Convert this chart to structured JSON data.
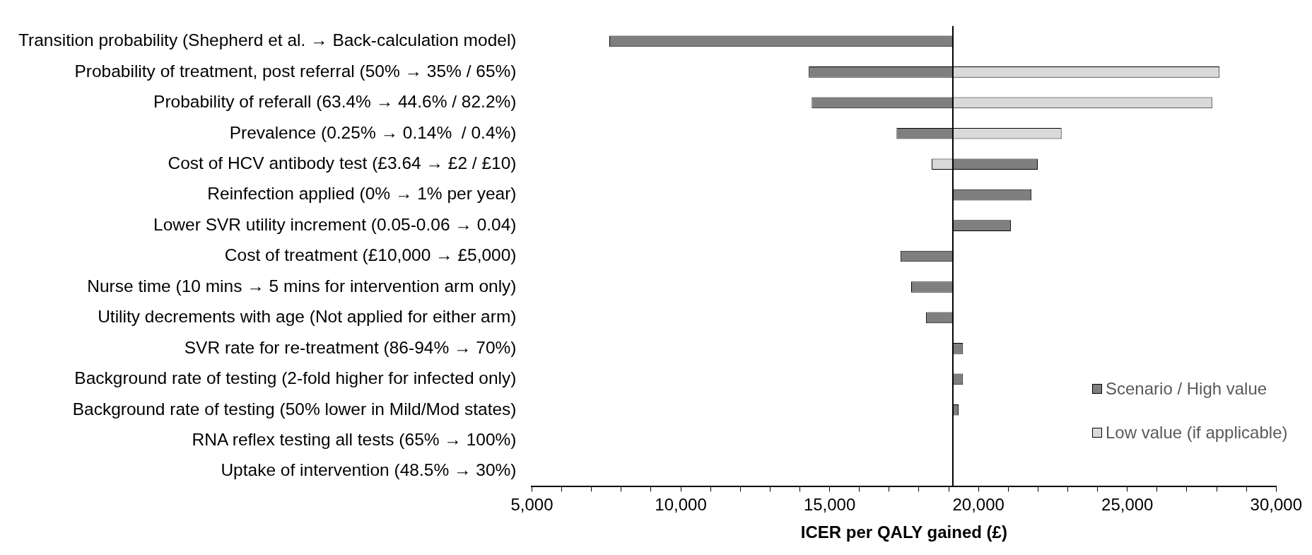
{
  "chart_data": {
    "type": "bar",
    "orientation": "horizontal",
    "xlabel": "ICER per QALY gained (£)",
    "categories": [
      "Transition probability (Shepherd et al. → Back-calculation model)",
      "Probability of treatment, post referral (50% → 35% / 65%)",
      "Probability of referall (63.4% → 44.6% / 82.2%)",
      "Prevalence (0.25% → 0.14%  / 0.4%)",
      "Cost of HCV antibody test (£3.64 → £2 / £10)",
      "Reinfection applied (0% → 1% per year)",
      "Lower SVR utility increment (0.05-0.06 → 0.04)",
      "Cost of treatment (£10,000 → £5,000)",
      "Nurse time (10 mins → 5 mins for intervention arm only)",
      "Utility decrements with age (Not applied for either arm)",
      "SVR rate for re-treatment (86-94% → 70%)",
      "Background rate of testing (2-fold higher for infected only)",
      "Background rate of testing (50% lower in Mild/Mod states)",
      "RNA reflex testing all tests (65% → 100%)",
      "Uptake of intervention (48.5% → 30%)"
    ],
    "series": [
      {
        "name": "Scenario / High value",
        "color": "#7f7f7f",
        "base": [
          19140,
          19140,
          19140,
          19140,
          19140,
          19140,
          19140,
          19140,
          19140,
          19140,
          19140,
          19140,
          19140,
          null,
          null
        ],
        "values": [
          -11540,
          -4840,
          -4740,
          -1890,
          2850,
          2640,
          1950,
          -1760,
          -1400,
          -900,
          340,
          340,
          190,
          null,
          null
        ]
      },
      {
        "name": "Low value (if applicable)",
        "color": "#d9d9d9",
        "base": [
          null,
          19140,
          19140,
          19140,
          19140,
          null,
          null,
          null,
          null,
          null,
          null,
          null,
          null,
          null,
          null
        ],
        "values": [
          null,
          8960,
          8710,
          3650,
          -710,
          null,
          null,
          null,
          null,
          null,
          null,
          null,
          null,
          null,
          null
        ]
      }
    ],
    "xlim": [
      5000,
      30000
    ],
    "xticks": [
      {
        "value": 5000,
        "label": "5,000"
      },
      {
        "value": 6000,
        "label": null
      },
      {
        "value": 7000,
        "label": null
      },
      {
        "value": 8000,
        "label": null
      },
      {
        "value": 9000,
        "label": null
      },
      {
        "value": 10000,
        "label": "10,000"
      },
      {
        "value": 11000,
        "label": null
      },
      {
        "value": 12000,
        "label": null
      },
      {
        "value": 13000,
        "label": null
      },
      {
        "value": 14000,
        "label": null
      },
      {
        "value": 15000,
        "label": "15,000"
      },
      {
        "value": 16000,
        "label": null
      },
      {
        "value": 17000,
        "label": null
      },
      {
        "value": 18000,
        "label": null
      },
      {
        "value": 19000,
        "label": null
      },
      {
        "value": 20000,
        "label": "20,000"
      },
      {
        "value": 21000,
        "label": null
      },
      {
        "value": 22000,
        "label": null
      },
      {
        "value": 23000,
        "label": null
      },
      {
        "value": 24000,
        "label": null
      },
      {
        "value": 25000,
        "label": "25,000"
      },
      {
        "value": 26000,
        "label": null
      },
      {
        "value": 27000,
        "label": null
      },
      {
        "value": 28000,
        "label": null
      },
      {
        "value": 29000,
        "label": null
      },
      {
        "value": 30000,
        "label": "30,000"
      }
    ],
    "ref_lines": [
      {
        "axis": "x",
        "value": 19140
      }
    ],
    "grid": false,
    "legend": "right"
  }
}
